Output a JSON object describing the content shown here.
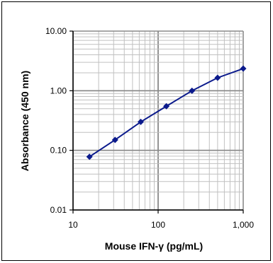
{
  "chart_data": {
    "type": "line",
    "xlabel": "Mouse IFN-γ (pg/mL)",
    "ylabel": "Absorbance (450 nm)",
    "x_scale": "log",
    "y_scale": "log",
    "xlim": [
      10,
      1000
    ],
    "ylim": [
      0.01,
      10
    ],
    "x_ticks": [
      "10",
      "100",
      "1,000"
    ],
    "y_ticks": [
      "0.01",
      "0.10",
      "1.00",
      "10.00"
    ],
    "grid": true,
    "series_color": "#0b1a8c",
    "grid_color": "#c0c0c0",
    "grid_major_color": "#8a8a8a",
    "x": [
      15.6,
      31.2,
      62.5,
      125,
      250,
      500,
      1000
    ],
    "y": [
      0.078,
      0.15,
      0.3,
      0.55,
      1.0,
      1.65,
      2.35
    ]
  }
}
